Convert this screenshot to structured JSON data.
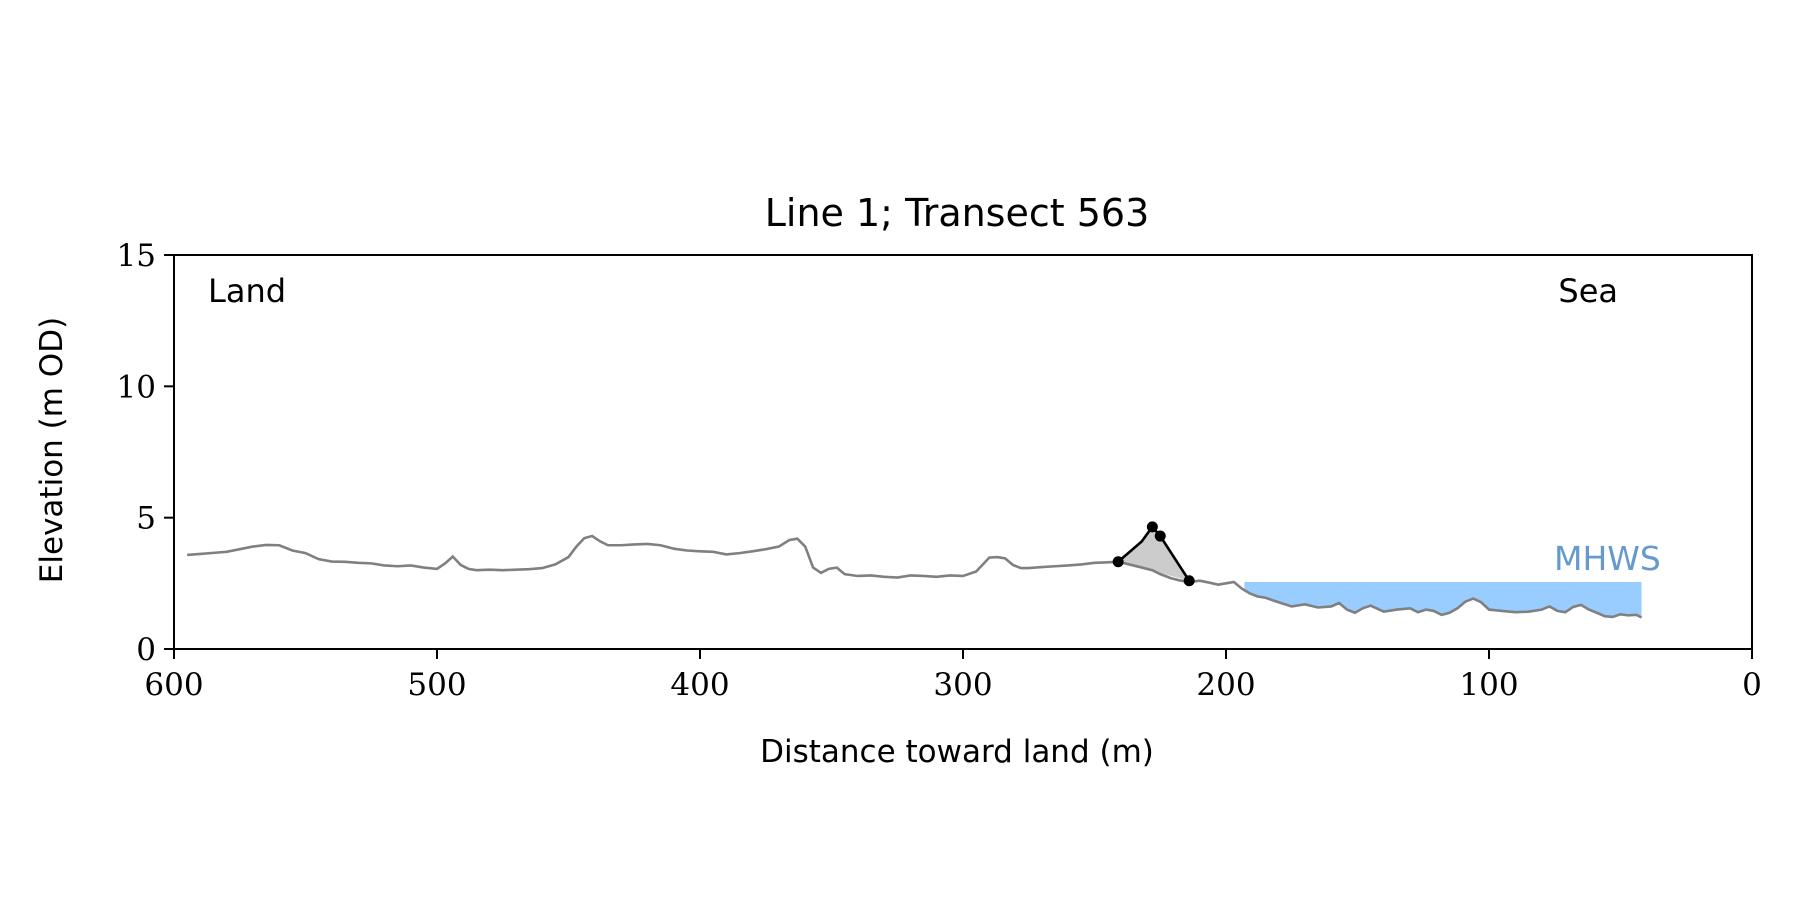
{
  "chart_data": {
    "type": "line",
    "title": "Line 1; Transect 563",
    "xlabel": "Distance toward land (m)",
    "ylabel": "Elevation (m OD)",
    "xlim": [
      600,
      0
    ],
    "ylim": [
      0,
      15
    ],
    "x_ticks": [
      600,
      500,
      400,
      300,
      200,
      100,
      0
    ],
    "y_ticks": [
      0,
      5,
      10,
      15
    ],
    "x_tick_labels": [
      "600",
      "500",
      "400",
      "300",
      "200",
      "100",
      "0"
    ],
    "y_tick_labels": [
      "0",
      "5",
      "10",
      "15"
    ],
    "annotations": {
      "land": "Land",
      "sea": "Sea",
      "mhws": "MHWS"
    },
    "colors": {
      "profile": "#808080",
      "dune": "#000000",
      "dune_fill": "#cccccc",
      "water": "#99ccff",
      "mhws_text": "#6699cc"
    },
    "mhws": {
      "level": 2.55,
      "x_start": 193,
      "x_end": 42
    },
    "series": [
      {
        "name": "",
        "x": [
          595,
          590,
          585,
          580,
          575,
          570,
          565,
          560,
          555,
          550,
          545,
          540,
          535,
          530,
          525,
          520,
          515,
          510,
          505,
          500,
          497,
          494,
          491,
          488,
          485,
          480,
          475,
          470,
          465,
          460,
          455,
          450,
          447,
          444,
          441,
          438,
          435,
          430,
          425,
          420,
          415,
          410,
          405,
          400,
          395,
          390,
          385,
          380,
          375,
          370,
          366,
          363,
          360,
          357,
          354,
          351,
          348,
          345,
          340,
          335,
          330,
          325,
          320,
          315,
          310,
          305,
          300,
          295,
          290,
          287,
          284,
          281,
          278,
          275,
          270,
          265,
          260,
          255,
          250,
          245,
          241,
          236,
          232,
          228,
          225,
          221,
          218,
          214,
          210,
          206,
          203,
          200,
          197,
          194,
          191,
          188,
          185,
          180,
          175,
          170,
          165,
          160,
          157,
          154,
          151,
          148,
          145,
          140,
          135,
          130,
          127,
          124,
          121,
          118,
          115,
          112,
          109,
          106,
          103,
          100,
          95,
          90,
          85,
          80,
          77,
          74,
          71,
          68,
          65,
          62,
          59,
          56,
          53,
          50,
          47,
          44,
          42
        ],
        "y": [
          3.58,
          3.62,
          3.66,
          3.7,
          3.8,
          3.9,
          3.96,
          3.95,
          3.75,
          3.65,
          3.42,
          3.33,
          3.32,
          3.28,
          3.26,
          3.18,
          3.15,
          3.18,
          3.1,
          3.05,
          3.25,
          3.52,
          3.2,
          3.05,
          3.0,
          3.02,
          3.0,
          3.02,
          3.04,
          3.08,
          3.22,
          3.5,
          3.9,
          4.22,
          4.3,
          4.1,
          3.95,
          3.95,
          3.98,
          4.0,
          3.95,
          3.82,
          3.75,
          3.72,
          3.7,
          3.6,
          3.65,
          3.72,
          3.8,
          3.9,
          4.15,
          4.2,
          3.9,
          3.1,
          2.9,
          3.05,
          3.1,
          2.85,
          2.78,
          2.8,
          2.75,
          2.72,
          2.8,
          2.78,
          2.75,
          2.8,
          2.78,
          2.95,
          3.48,
          3.5,
          3.45,
          3.2,
          3.08,
          3.08,
          3.12,
          3.15,
          3.18,
          3.22,
          3.28,
          3.3,
          3.32,
          3.2,
          3.1,
          3.0,
          2.85,
          2.7,
          2.62,
          2.55,
          2.6,
          2.52,
          2.45,
          2.5,
          2.55,
          2.3,
          2.12,
          2.0,
          1.95,
          1.78,
          1.62,
          1.7,
          1.58,
          1.62,
          1.75,
          1.5,
          1.38,
          1.55,
          1.65,
          1.42,
          1.5,
          1.55,
          1.4,
          1.5,
          1.45,
          1.3,
          1.38,
          1.55,
          1.8,
          1.92,
          1.78,
          1.5,
          1.45,
          1.4,
          1.42,
          1.5,
          1.62,
          1.45,
          1.4,
          1.6,
          1.68,
          1.5,
          1.38,
          1.25,
          1.22,
          1.32,
          1.28,
          1.3,
          1.2
        ]
      },
      {
        "name": "",
        "x": [
          241,
          232,
          228,
          225,
          214
        ],
        "y": [
          3.32,
          4.1,
          4.65,
          4.3,
          2.6
        ],
        "markers_at": [
          0,
          2,
          3,
          4
        ]
      }
    ]
  }
}
